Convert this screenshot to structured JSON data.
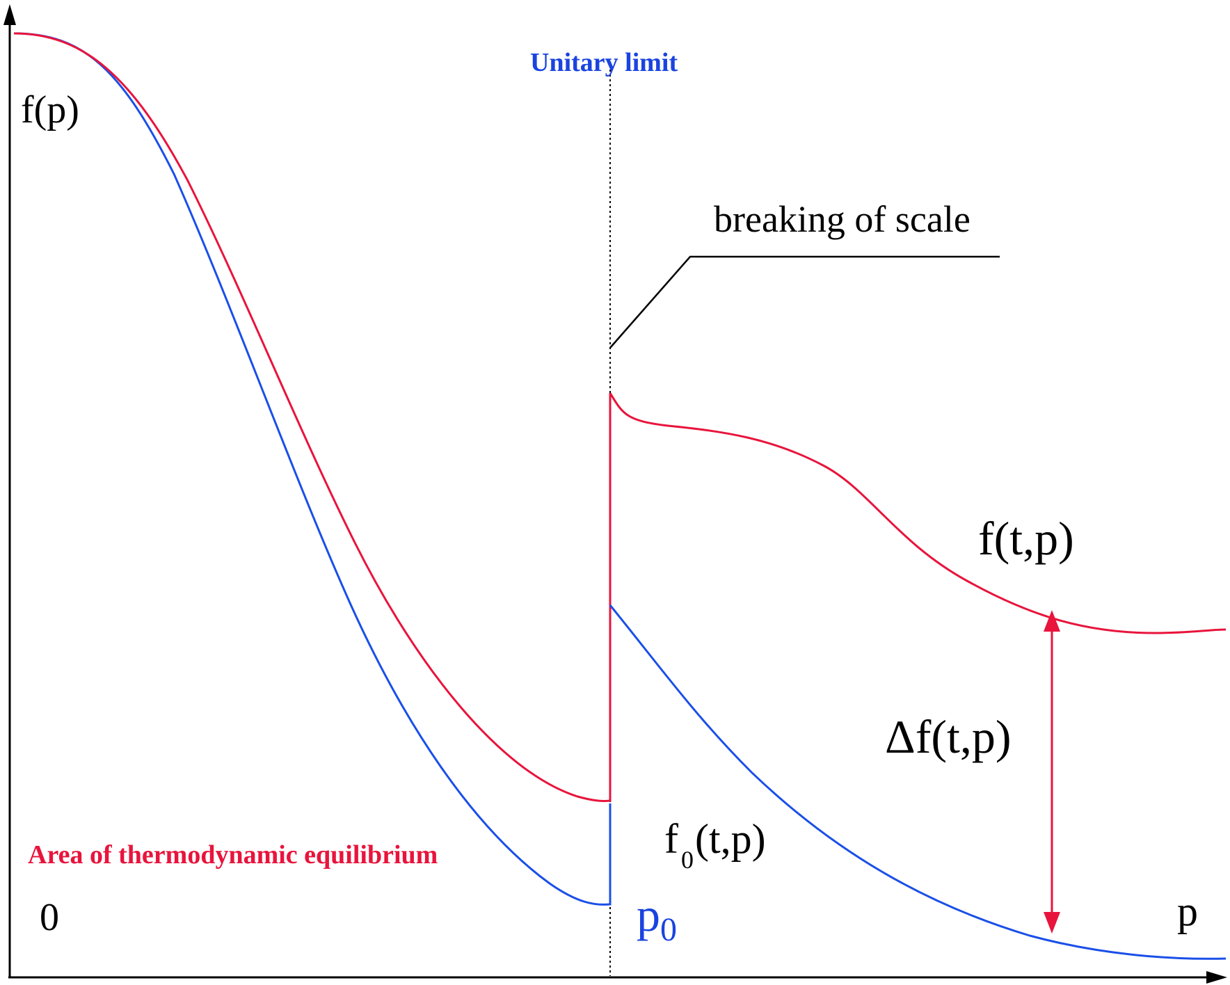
{
  "labels": {
    "y_axis": "f(p)",
    "origin": "0",
    "x_axis": "p",
    "p0_main": "p",
    "p0_sub": "0",
    "unitary_limit": "Unitary limit",
    "breaking": "breaking of scale",
    "f_tp": "f(t,p)",
    "delta_f": "Δf(t,p)",
    "f0_main": "f",
    "f0_sub": "0",
    "f0_rest": "(t,p)",
    "equilibrium": "Area of thermodynamic equilibrium"
  },
  "colors": {
    "red": "#e8143c",
    "blue": "#1a4fe8",
    "label_blue": "#1a44e0",
    "black": "#000000"
  }
}
